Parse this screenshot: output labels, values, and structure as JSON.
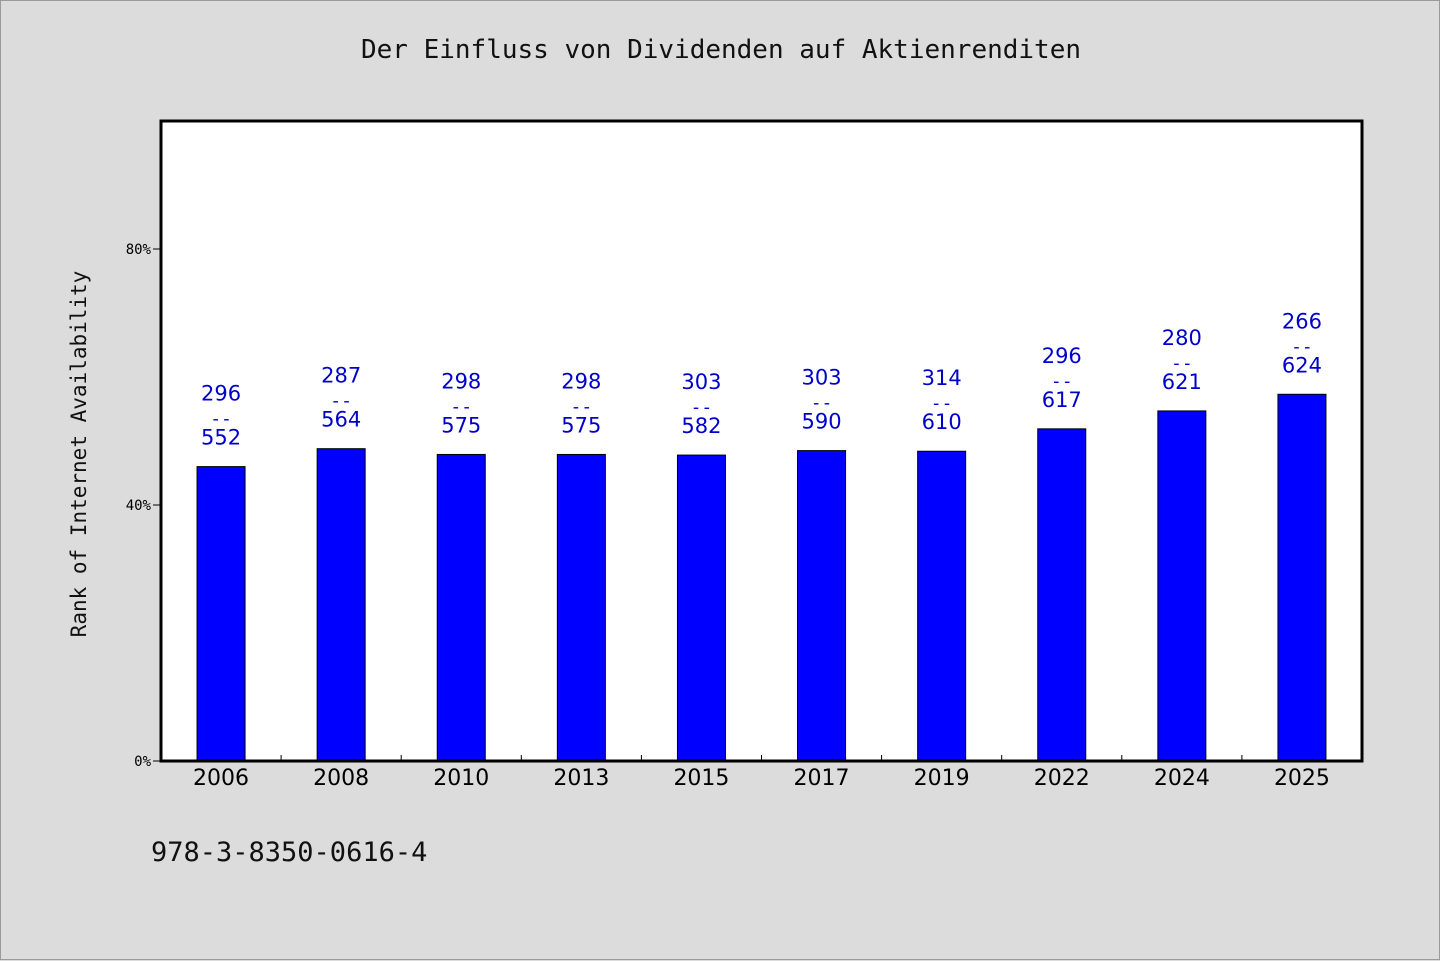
{
  "chart_data": {
    "type": "bar",
    "title": "Der Einfluss von Dividenden auf Aktienrenditen",
    "xlabel": "",
    "ylabel": "Rank of Internet Availability",
    "categories": [
      "2006",
      "2008",
      "2010",
      "2013",
      "2015",
      "2017",
      "2019",
      "2022",
      "2024",
      "2025"
    ],
    "values": [
      46,
      48.8,
      47.9,
      47.9,
      47.8,
      48.5,
      48.4,
      51.9,
      54.7,
      57.3
    ],
    "bar_labels": [
      {
        "top": "296",
        "sep": "--",
        "bottom": "552"
      },
      {
        "top": "287",
        "sep": "--",
        "bottom": "564"
      },
      {
        "top": "298",
        "sep": "--",
        "bottom": "575"
      },
      {
        "top": "298",
        "sep": "--",
        "bottom": "575"
      },
      {
        "top": "303",
        "sep": "--",
        "bottom": "582"
      },
      {
        "top": "303",
        "sep": "--",
        "bottom": "590"
      },
      {
        "top": "314",
        "sep": "--",
        "bottom": "610"
      },
      {
        "top": "296",
        "sep": "--",
        "bottom": "617"
      },
      {
        "top": "280",
        "sep": "--",
        "bottom": "621"
      },
      {
        "top": "266",
        "sep": "--",
        "bottom": "624"
      }
    ],
    "ylim": [
      0,
      100
    ],
    "yticks": [
      0,
      40,
      80
    ],
    "ytick_labels": [
      "0%",
      "40%",
      "80%"
    ],
    "grid": false,
    "bar_color": "#0000ff",
    "label_color": "#0000cc"
  },
  "footer": {
    "code": "978-3-8350-0616-4"
  }
}
